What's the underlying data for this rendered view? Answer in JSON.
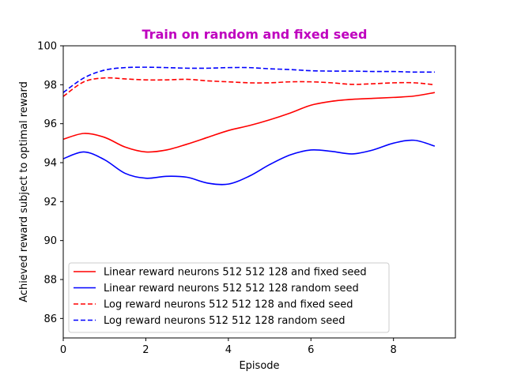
{
  "chart_data": {
    "type": "line",
    "title": "Train on random and fixed seed",
    "title_color": "#bf00bf",
    "xlabel": "Episode",
    "ylabel": "Achieved reward subject to optimal reward",
    "xlim": [
      0,
      9.5
    ],
    "ylim": [
      85,
      100
    ],
    "xticks": [
      0,
      2,
      4,
      6,
      8
    ],
    "yticks": [
      86,
      88,
      90,
      92,
      94,
      96,
      98,
      100
    ],
    "grid": false,
    "legend_position": "lower-left",
    "series": [
      {
        "name": "Linear reward neurons 512 512 128 and fixed seed",
        "color": "#ff0000",
        "dash": "solid",
        "x": [
          0,
          0.5,
          1,
          1.5,
          2,
          2.5,
          3,
          3.5,
          4,
          4.5,
          5,
          5.5,
          6,
          6.5,
          7,
          7.5,
          8,
          8.5,
          9
        ],
        "values": [
          95.2,
          95.5,
          95.3,
          94.8,
          94.55,
          94.65,
          94.95,
          95.3,
          95.65,
          95.9,
          96.2,
          96.55,
          96.95,
          97.15,
          97.25,
          97.3,
          97.35,
          97.42,
          97.6
        ]
      },
      {
        "name": "Linear reward neurons 512 512 128 random seed",
        "color": "#0000ff",
        "dash": "solid",
        "x": [
          0,
          0.5,
          1,
          1.5,
          2,
          2.5,
          3,
          3.5,
          4,
          4.5,
          5,
          5.5,
          6,
          6.5,
          7,
          7.5,
          8,
          8.5,
          9
        ],
        "values": [
          94.2,
          94.55,
          94.15,
          93.45,
          93.2,
          93.3,
          93.25,
          92.95,
          92.9,
          93.3,
          93.9,
          94.4,
          94.65,
          94.58,
          94.45,
          94.65,
          95.0,
          95.15,
          94.85
        ]
      },
      {
        "name": "Log reward neurons 512 512 128 and fixed seed",
        "color": "#ff0000",
        "dash": "dashed",
        "x": [
          0,
          0.5,
          1,
          1.5,
          2,
          2.5,
          3,
          3.5,
          4,
          4.5,
          5,
          5.5,
          6,
          6.5,
          7,
          7.5,
          8,
          8.5,
          9
        ],
        "values": [
          97.4,
          98.15,
          98.35,
          98.3,
          98.25,
          98.25,
          98.28,
          98.2,
          98.15,
          98.1,
          98.1,
          98.15,
          98.15,
          98.1,
          98.02,
          98.05,
          98.1,
          98.1,
          98.0
        ]
      },
      {
        "name": "Log reward neurons 512 512 128 random seed",
        "color": "#0000ff",
        "dash": "dashed",
        "x": [
          0,
          0.5,
          1,
          1.5,
          2,
          2.5,
          3,
          3.5,
          4,
          4.5,
          5,
          5.5,
          6,
          6.5,
          7,
          7.5,
          8,
          8.5,
          9
        ],
        "values": [
          97.6,
          98.35,
          98.75,
          98.88,
          98.9,
          98.88,
          98.85,
          98.85,
          98.88,
          98.88,
          98.82,
          98.78,
          98.72,
          98.7,
          98.7,
          98.68,
          98.68,
          98.65,
          98.65
        ]
      }
    ]
  }
}
